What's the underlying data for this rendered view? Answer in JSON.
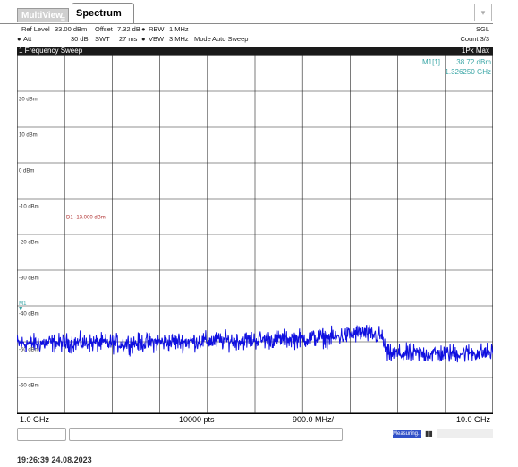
{
  "tabs": {
    "multiview": "MultiView",
    "spectrum": "Spectrum"
  },
  "settings": {
    "ref_level_label": "Ref Level",
    "ref_level_value": "33.00 dBm",
    "offset_label": "Offset",
    "offset_value": "7.32 dB",
    "rbw_label": "RBW",
    "rbw_value": "1 MHz",
    "att_label": "Att",
    "att_value": "30 dB",
    "swt_label": "SWT",
    "swt_value": "27 ms",
    "vbw_label": "VBW",
    "vbw_value": "3 MHz",
    "mode_label": "Mode",
    "mode_value": "Auto Sweep",
    "sweep_mode": "SGL",
    "count": "Count 3/3"
  },
  "trace_header": {
    "title": "1 Frequency Sweep",
    "trace_mode": "1Pk Max"
  },
  "marker": {
    "label": "M1[1]",
    "level": "38.72 dBm",
    "frequency": "1.326250 GHz",
    "plot_label": "M1"
  },
  "display_line": {
    "label": "D1",
    "value": "-13.000 dBm",
    "level_dbm": -13
  },
  "chart_data": {
    "type": "line",
    "y_tick_labels": [
      "20 dBm",
      "10 dBm",
      "0 dBm",
      "-10 dBm",
      "-20 dBm",
      "-30 dBm",
      "-40 dBm",
      "-50 dBm",
      "-60 dBm"
    ],
    "y_tick_values": [
      20,
      10,
      0,
      -10,
      -20,
      -30,
      -40,
      -50,
      -60
    ],
    "ylim": [
      -68,
      32
    ],
    "xlim": [
      1.0,
      10.0
    ],
    "x_unit": "GHz",
    "grid": true,
    "trace_color": "#1010e0",
    "series": [
      {
        "x": [
          1.0,
          2.0,
          3.0,
          4.0,
          5.0,
          6.0,
          7.0,
          7.5,
          7.9,
          8.0,
          9.0,
          10.0
        ],
        "y": [
          -48.5,
          -48.3,
          -48.5,
          -48.0,
          -47.7,
          -47.3,
          -46.8,
          -45.5,
          -46.5,
          -51.5,
          -51.3,
          -51.0
        ]
      }
    ]
  },
  "footer": {
    "start": "1.0 GHz",
    "points": "10000 pts",
    "span_per_div": "900.0 MHz/",
    "stop": "10.0 GHz"
  },
  "status": {
    "measuring": "Measuring..."
  },
  "timestamp": {
    "time": "19:26:39",
    "date": "24.08.2023"
  },
  "colors": {
    "marker_text": "#3aa6a6",
    "display_line": "#b03030",
    "trace": "#1010e0",
    "header_bg": "#1a1a1a"
  }
}
